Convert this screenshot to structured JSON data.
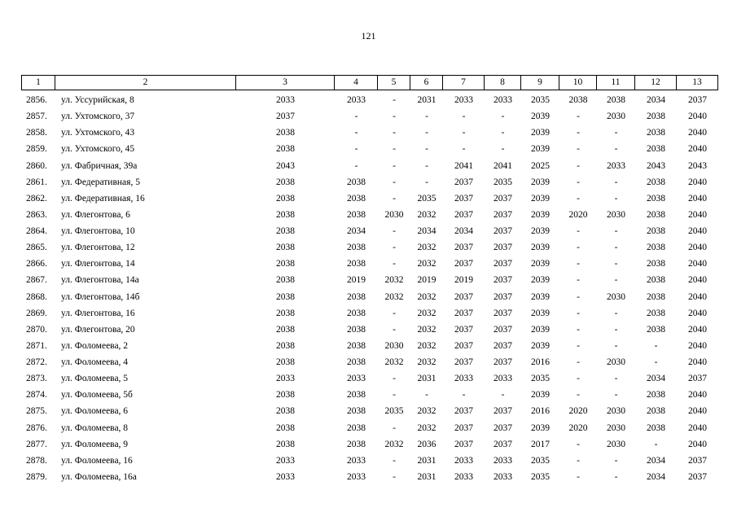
{
  "page_number": "121",
  "table": {
    "header": [
      "1",
      "2",
      "3",
      "4",
      "5",
      "6",
      "7",
      "8",
      "9",
      "10",
      "11",
      "12",
      "13"
    ],
    "rows": [
      [
        "2856.",
        "ул. Уссурийская, 8",
        "2033",
        "2033",
        "-",
        "2031",
        "2033",
        "2033",
        "2035",
        "2038",
        "2038",
        "2034",
        "2037"
      ],
      [
        "2857.",
        "ул. Ухтомского, 37",
        "2037",
        "-",
        "-",
        "-",
        "-",
        "-",
        "2039",
        "-",
        "2030",
        "2038",
        "2040"
      ],
      [
        "2858.",
        "ул. Ухтомского, 43",
        "2038",
        "-",
        "-",
        "-",
        "-",
        "-",
        "2039",
        "-",
        "-",
        "2038",
        "2040"
      ],
      [
        "2859.",
        "ул. Ухтомского, 45",
        "2038",
        "-",
        "-",
        "-",
        "-",
        "-",
        "2039",
        "-",
        "-",
        "2038",
        "2040"
      ],
      [
        "2860.",
        "ул. Фабричная, 39а",
        "2043",
        "-",
        "-",
        "-",
        "2041",
        "2041",
        "2025",
        "-",
        "2033",
        "2043",
        "2043"
      ],
      [
        "2861.",
        "ул. Федеративная, 5",
        "2038",
        "2038",
        "-",
        "-",
        "2037",
        "2035",
        "2039",
        "-",
        "-",
        "2038",
        "2040"
      ],
      [
        "2862.",
        "ул. Федеративная, 16",
        "2038",
        "2038",
        "-",
        "2035",
        "2037",
        "2037",
        "2039",
        "-",
        "-",
        "2038",
        "2040"
      ],
      [
        "2863.",
        "ул. Флегонтова, 6",
        "2038",
        "2038",
        "2030",
        "2032",
        "2037",
        "2037",
        "2039",
        "2020",
        "2030",
        "2038",
        "2040"
      ],
      [
        "2864.",
        "ул. Флегонтова, 10",
        "2038",
        "2034",
        "-",
        "2034",
        "2034",
        "2037",
        "2039",
        "-",
        "-",
        "2038",
        "2040"
      ],
      [
        "2865.",
        "ул. Флегонтова, 12",
        "2038",
        "2038",
        "-",
        "2032",
        "2037",
        "2037",
        "2039",
        "-",
        "-",
        "2038",
        "2040"
      ],
      [
        "2866.",
        "ул. Флегонтова, 14",
        "2038",
        "2038",
        "-",
        "2032",
        "2037",
        "2037",
        "2039",
        "-",
        "-",
        "2038",
        "2040"
      ],
      [
        "2867.",
        "ул. Флегонтова, 14а",
        "2038",
        "2019",
        "2032",
        "2019",
        "2019",
        "2037",
        "2039",
        "-",
        "-",
        "2038",
        "2040"
      ],
      [
        "2868.",
        "ул. Флегонтова, 14б",
        "2038",
        "2038",
        "2032",
        "2032",
        "2037",
        "2037",
        "2039",
        "-",
        "2030",
        "2038",
        "2040"
      ],
      [
        "2869.",
        "ул. Флегонтова, 16",
        "2038",
        "2038",
        "-",
        "2032",
        "2037",
        "2037",
        "2039",
        "-",
        "-",
        "2038",
        "2040"
      ],
      [
        "2870.",
        "ул. Флегонтова, 20",
        "2038",
        "2038",
        "-",
        "2032",
        "2037",
        "2037",
        "2039",
        "-",
        "-",
        "2038",
        "2040"
      ],
      [
        "2871.",
        "ул. Фоломеева, 2",
        "2038",
        "2038",
        "2030",
        "2032",
        "2037",
        "2037",
        "2039",
        "-",
        "-",
        "-",
        "2040"
      ],
      [
        "2872.",
        "ул. Фоломеева, 4",
        "2038",
        "2038",
        "2032",
        "2032",
        "2037",
        "2037",
        "2016",
        "-",
        "2030",
        "-",
        "2040"
      ],
      [
        "2873.",
        "ул. Фоломеева, 5",
        "2033",
        "2033",
        "-",
        "2031",
        "2033",
        "2033",
        "2035",
        "-",
        "-",
        "2034",
        "2037"
      ],
      [
        "2874.",
        "ул. Фоломеева, 5б",
        "2038",
        "2038",
        "-",
        "-",
        "-",
        "-",
        "2039",
        "-",
        "-",
        "2038",
        "2040"
      ],
      [
        "2875.",
        "ул. Фоломеева, 6",
        "2038",
        "2038",
        "2035",
        "2032",
        "2037",
        "2037",
        "2016",
        "2020",
        "2030",
        "2038",
        "2040"
      ],
      [
        "2876.",
        "ул. Фоломеева, 8",
        "2038",
        "2038",
        "-",
        "2032",
        "2037",
        "2037",
        "2039",
        "2020",
        "2030",
        "2038",
        "2040"
      ],
      [
        "2877.",
        "ул. Фоломеева, 9",
        "2038",
        "2038",
        "2032",
        "2036",
        "2037",
        "2037",
        "2017",
        "-",
        "2030",
        "-",
        "2040"
      ],
      [
        "2878.",
        "ул. Фоломеева, 16",
        "2033",
        "2033",
        "-",
        "2031",
        "2033",
        "2033",
        "2035",
        "-",
        "-",
        "2034",
        "2037"
      ],
      [
        "2879.",
        "ул. Фоломеева, 16а",
        "2033",
        "2033",
        "-",
        "2031",
        "2033",
        "2033",
        "2035",
        "-",
        "-",
        "2034",
        "2037"
      ]
    ]
  }
}
